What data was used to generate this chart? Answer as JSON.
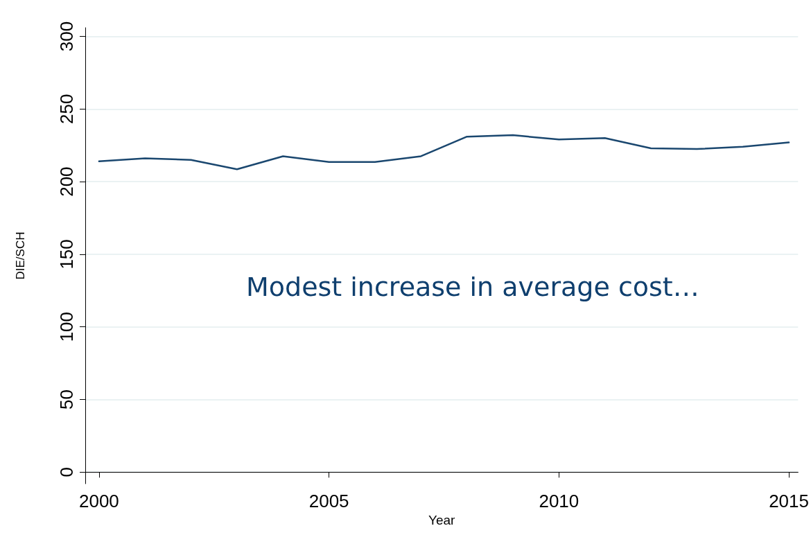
{
  "chart_data": {
    "type": "line",
    "xlabel": "Year",
    "ylabel": "DIE/SCH",
    "annotations": [
      "Modest increase in average cost…"
    ],
    "x": [
      2000,
      2001,
      2002,
      2003,
      2004,
      2005,
      2006,
      2007,
      2008,
      2009,
      2010,
      2011,
      2012,
      2013,
      2014,
      2015
    ],
    "series": [
      {
        "color": "#1a476f",
        "values": [
          214,
          216,
          215,
          208.5,
          217.5,
          213.5,
          213.5,
          217.5,
          231,
          232,
          229,
          230,
          223,
          222.5,
          224,
          227
        ]
      }
    ],
    "xlim": [
      1999.7,
      2015.2
    ],
    "xticks": [
      2000,
      2005,
      2010,
      2015
    ],
    "ylim": [
      -8,
      306
    ],
    "yticks": [
      0,
      50,
      100,
      150,
      200,
      250,
      300
    ],
    "grid": "y",
    "marker": "none",
    "line_style": "solid"
  }
}
